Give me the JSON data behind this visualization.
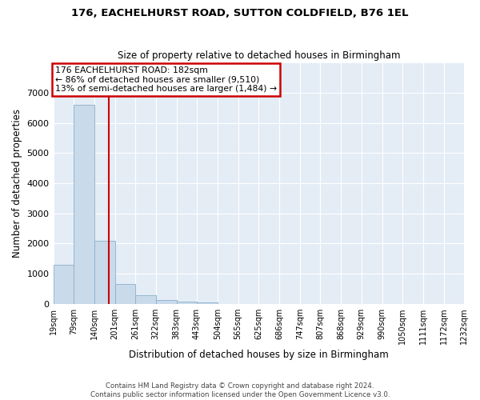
{
  "title": "176, EACHELHURST ROAD, SUTTON COLDFIELD, B76 1EL",
  "subtitle": "Size of property relative to detached houses in Birmingham",
  "xlabel": "Distribution of detached houses by size in Birmingham",
  "ylabel": "Number of detached properties",
  "bar_color": "#c9daea",
  "bar_edge_color": "#8ab0cc",
  "bg_color": "#e4ecf5",
  "grid_color": "#ffffff",
  "vline_x": 182,
  "vline_color": "#cc0000",
  "annotation_box_color": "#cc0000",
  "annotation_lines": [
    "176 EACHELHURST ROAD: 182sqm",
    "← 86% of detached houses are smaller (9,510)",
    "13% of semi-detached houses are larger (1,484) →"
  ],
  "bin_edges": [
    19,
    79,
    140,
    201,
    261,
    322,
    383,
    443,
    504,
    565,
    625,
    686,
    747,
    807,
    868,
    929,
    990,
    1050,
    1111,
    1172,
    1232
  ],
  "bin_counts": [
    1300,
    6600,
    2100,
    650,
    280,
    120,
    80,
    50,
    0,
    0,
    0,
    0,
    0,
    0,
    0,
    0,
    0,
    0,
    0,
    0
  ],
  "ylim": [
    0,
    8000
  ],
  "yticks": [
    0,
    1000,
    2000,
    3000,
    4000,
    5000,
    6000,
    7000
  ],
  "footer_lines": [
    "Contains HM Land Registry data © Crown copyright and database right 2024.",
    "Contains public sector information licensed under the Open Government Licence v3.0."
  ],
  "figsize": [
    6.0,
    5.0
  ],
  "dpi": 100
}
